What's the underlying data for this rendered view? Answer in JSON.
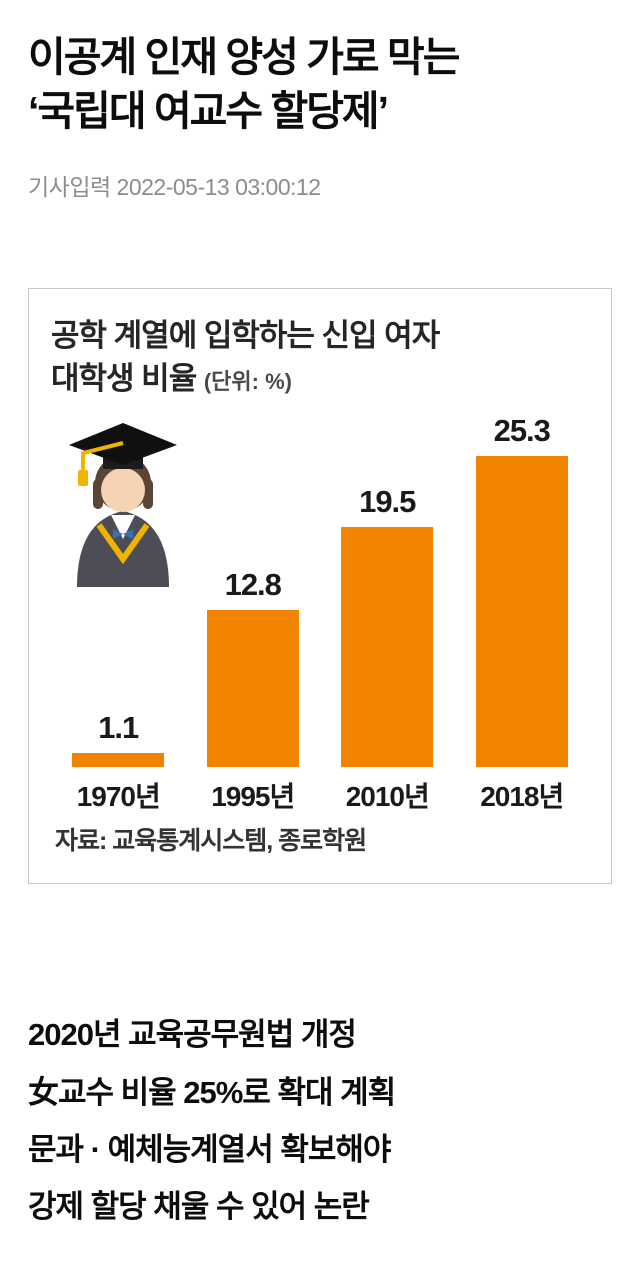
{
  "article": {
    "headline_line1": "이공계 인재 양성 가로 막는",
    "headline_line2": "‘국립대 여교수 할당제’",
    "timestamp": "기사입력 2022-05-13 03:00:12",
    "subhead_lines": [
      "2020년 교육공무원법 개정",
      "女교수 비율 25%로 확대 계획",
      "문과 · 예체능계열서 확보해야",
      "강제 할당 채울 수 있어 논란"
    ]
  },
  "chart_data": {
    "type": "bar",
    "title_line1": "공학 계열에 입학하는 신입 여자",
    "title_line2": "대학생 비율",
    "unit_label": "(단위: %)",
    "categories": [
      "1970년",
      "1995년",
      "2010년",
      "2018년"
    ],
    "values": [
      1.1,
      12.8,
      19.5,
      25.3
    ],
    "ylim": [
      0,
      26
    ],
    "bar_color": "#f08300",
    "source": "자료: 교육통계시스템, 종로학원",
    "legend": "none",
    "grid": false
  }
}
